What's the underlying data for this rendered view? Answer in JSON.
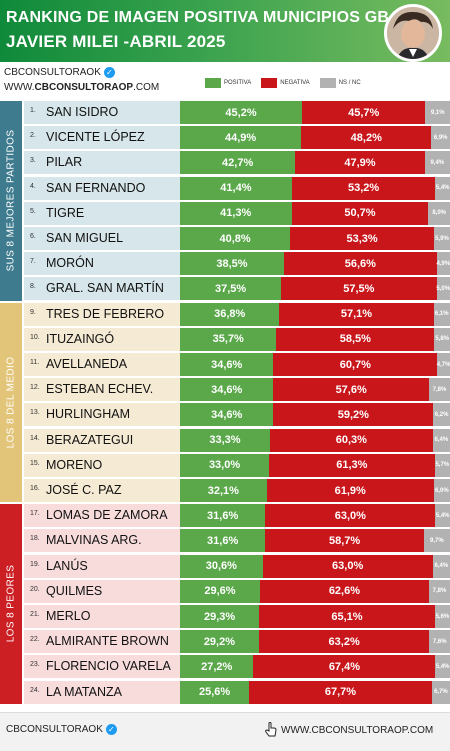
{
  "header": {
    "title_line1": "RANKING DE IMAGEN POSITIVA MUNICIPIOS GBA",
    "title_line2": "JAVIER MILEI -ABRIL 2025"
  },
  "brand": {
    "account": "CBCONSULTORAOK",
    "site_prefix": "WWW.",
    "site_bold": "CBCONSULTORAOP",
    "site_suffix": ".COM"
  },
  "legend": [
    {
      "label": "POSITIVA",
      "color": "#5aa84a"
    },
    {
      "label": "NEGATIVA",
      "color": "#c8161b"
    },
    {
      "label": "NS / NC",
      "color": "#b2b2b2"
    }
  ],
  "groups": [
    {
      "label": "SUS 8 MEJORES PARTIDOS",
      "color": "#3e7b8e",
      "row_bg": "#d6e6ea",
      "start": 0,
      "count": 8
    },
    {
      "label": "LOS 8 DEL MEDIO",
      "color": "#e3c57a",
      "row_bg": "#f5ead3",
      "start": 8,
      "count": 8
    },
    {
      "label": "LOS 8 PEORES",
      "color": "#cc1f24",
      "row_bg": "#f8dcdc",
      "start": 16,
      "count": 8
    }
  ],
  "chart_data": {
    "type": "bar",
    "stacked": true,
    "orientation": "horizontal",
    "categories": [
      "SAN ISIDRO",
      "VICENTE LÓPEZ",
      "PILAR",
      "SAN FERNANDO",
      "TIGRE",
      "SAN MIGUEL",
      "MORÓN",
      "GRAL. SAN MARTÍN",
      "TRES DE FEBRERO",
      "ITUZAINGÓ",
      "AVELLANEDA",
      "ESTEBAN ECHEV.",
      "HURLINGHAM",
      "BERAZATEGUI",
      "MORENO",
      "JOSÉ C. PAZ",
      "LOMAS DE ZAMORA",
      "MALVINAS ARG.",
      "LANÚS",
      "QUILMES",
      "MERLO",
      "ALMIRANTE BROWN",
      "FLORENCIO VARELA",
      "LA MATANZA"
    ],
    "ranks": [
      "1.",
      "2.",
      "3.",
      "4.",
      "5.",
      "6.",
      "7.",
      "8.",
      "9.",
      "10.",
      "11.",
      "12.",
      "13.",
      "14.",
      "15.",
      "16.",
      "17.",
      "18.",
      "19.",
      "20.",
      "21.",
      "22.",
      "23.",
      "24."
    ],
    "series": [
      {
        "name": "POSITIVA",
        "color": "#5aa84a",
        "values": [
          45.2,
          44.9,
          42.7,
          41.4,
          41.3,
          40.8,
          38.5,
          37.5,
          36.8,
          35.7,
          34.6,
          34.6,
          34.6,
          33.3,
          33.0,
          32.1,
          31.6,
          31.6,
          30.6,
          29.6,
          29.3,
          29.2,
          27.2,
          25.6
        ],
        "labels": [
          "45,2%",
          "44,9%",
          "42,7%",
          "41,4%",
          "41,3%",
          "40,8%",
          "38,5%",
          "37,5%",
          "36,8%",
          "35,7%",
          "34,6%",
          "34,6%",
          "34,6%",
          "33,3%",
          "33,0%",
          "32,1%",
          "31,6%",
          "31,6%",
          "30,6%",
          "29,6%",
          "29,3%",
          "29,2%",
          "27,2%",
          "25,6%"
        ]
      },
      {
        "name": "NEGATIVA",
        "color": "#c8161b",
        "values": [
          45.7,
          48.2,
          47.9,
          53.2,
          50.7,
          53.3,
          56.6,
          57.5,
          57.1,
          58.5,
          60.7,
          57.6,
          59.2,
          60.3,
          61.3,
          61.9,
          63.0,
          58.7,
          63.0,
          62.6,
          65.1,
          63.2,
          67.4,
          67.7
        ],
        "labels": [
          "45,7%",
          "48,2%",
          "47,9%",
          "53,2%",
          "50,7%",
          "53,3%",
          "56,6%",
          "57,5%",
          "57,1%",
          "58,5%",
          "60,7%",
          "57,6%",
          "59,2%",
          "60,3%",
          "61,3%",
          "61,9%",
          "63,0%",
          "58,7%",
          "63,0%",
          "62,6%",
          "65,1%",
          "63,2%",
          "67,4%",
          "67,7%"
        ]
      },
      {
        "name": "NS / NC",
        "color": "#b2b2b2",
        "values": [
          9.1,
          6.9,
          9.4,
          5.4,
          8.0,
          5.9,
          4.9,
          5.0,
          6.1,
          5.8,
          4.7,
          7.8,
          6.2,
          6.4,
          5.7,
          6.0,
          5.4,
          9.7,
          6.4,
          7.8,
          5.6,
          7.6,
          5.4,
          6.7
        ],
        "labels": [
          "9,1%",
          "6,9%",
          "9,4%",
          "5,4%",
          "8,0%",
          "5,9%",
          "4,9%",
          "5,0%",
          "6,1%",
          "5,8%",
          "4,7%",
          "7,8%",
          "6,2%",
          "6,4%",
          "5,7%",
          "6,0%",
          "5,4%",
          "9,7%",
          "6,4%",
          "7,8%",
          "5,6%",
          "7,6%",
          "5,4%",
          "6,7%"
        ]
      }
    ]
  },
  "footer": {
    "account": "CBCONSULTORAOK",
    "site": "WWW.CBCONSULTORAOP.COM"
  }
}
